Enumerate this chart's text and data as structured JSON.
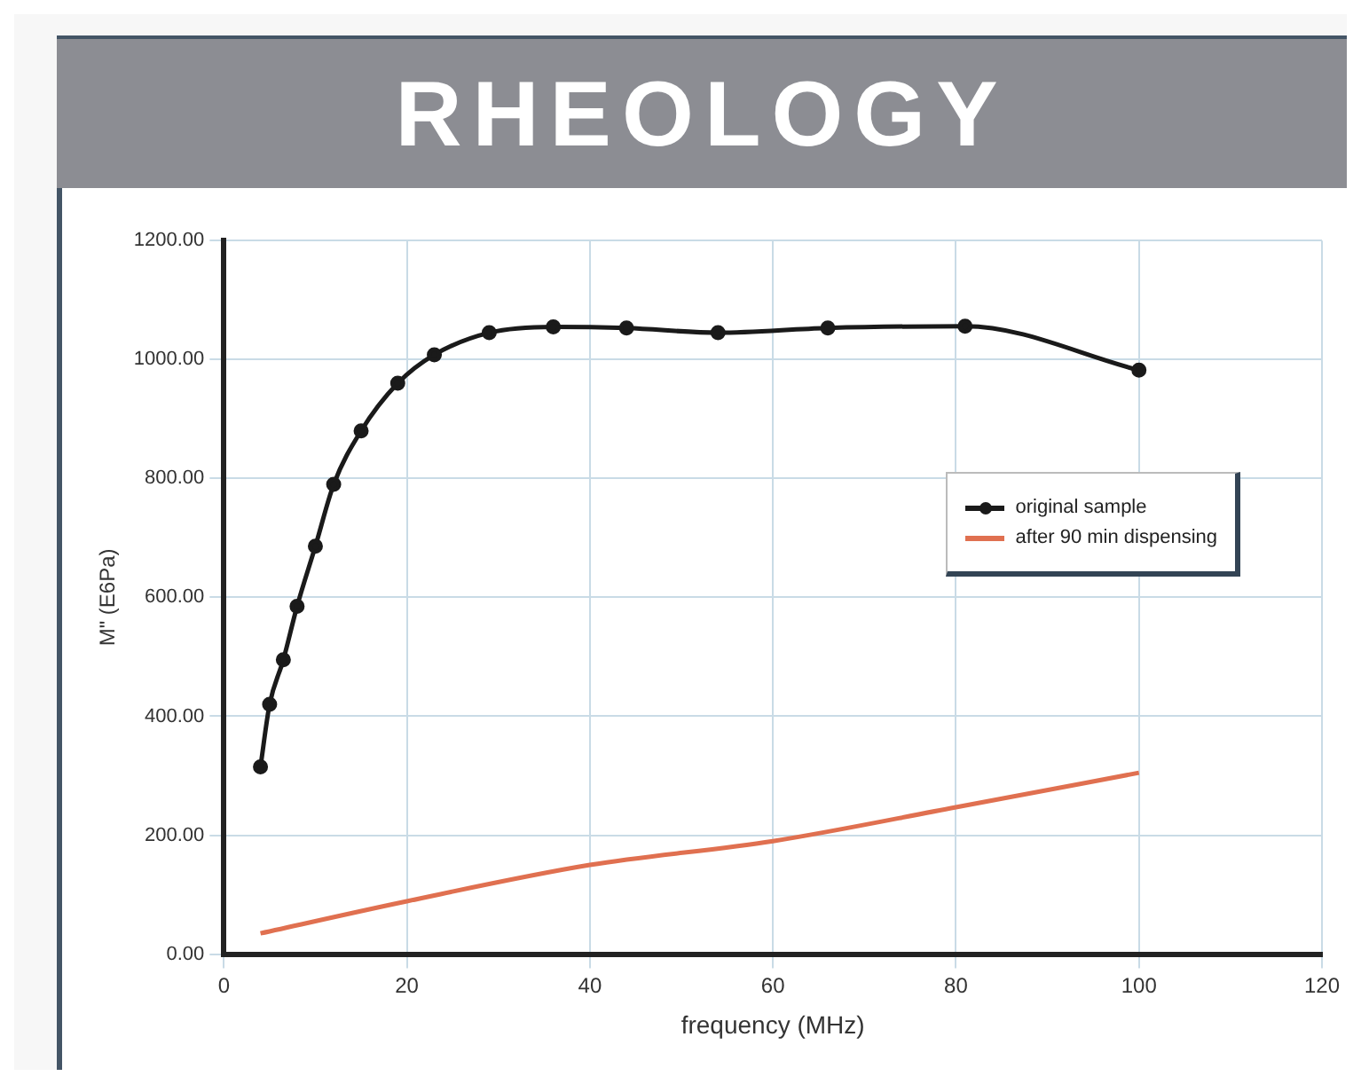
{
  "chart_data": {
    "type": "line",
    "title": "RHEOLOGY",
    "xlabel": "frequency (MHz)",
    "ylabel": "M\" (E6Pa)",
    "xlim": [
      0,
      120
    ],
    "xticks": [
      0,
      20,
      40,
      60,
      80,
      100,
      120
    ],
    "ylim": [
      0,
      1200
    ],
    "yticks": [
      {
        "value": 0,
        "label": "0.00"
      },
      {
        "value": 200,
        "label": "200.00"
      },
      {
        "value": 400,
        "label": "400.00"
      },
      {
        "value": 600,
        "label": "600.00"
      },
      {
        "value": 800,
        "label": "800.00"
      },
      {
        "value": 1000,
        "label": "1000.00"
      },
      {
        "value": 1200,
        "label": "1200.00"
      }
    ],
    "grid": true,
    "legend": "right",
    "series": [
      {
        "name": "original sample",
        "color": "#1a1a1a",
        "marker": "circle",
        "x": [
          4,
          5,
          6.5,
          8,
          10,
          12,
          15,
          19,
          23,
          29,
          36,
          44,
          54,
          66,
          81,
          100
        ],
        "values": [
          315,
          420,
          495,
          585,
          686,
          790,
          880,
          960,
          1008,
          1045,
          1055,
          1053,
          1045,
          1053,
          1056,
          982
        ]
      },
      {
        "name": "after 90 min dispensing",
        "color": "#e07050",
        "marker": "none",
        "x": [
          4,
          20,
          40,
          60,
          80,
          100
        ],
        "values": [
          35,
          89,
          150,
          190,
          247,
          305
        ]
      }
    ]
  }
}
